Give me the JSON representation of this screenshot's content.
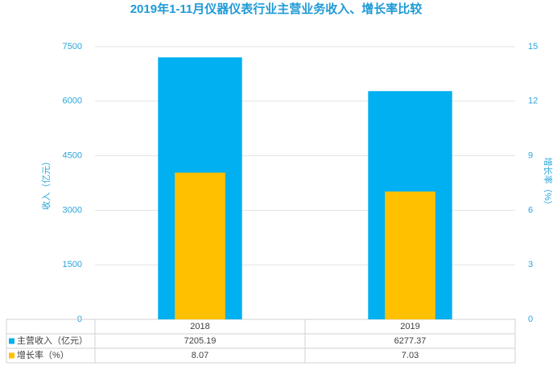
{
  "chart_data": {
    "type": "bar",
    "title": "2019年1-11月仪器仪表行业主营业务收入、增长率比较",
    "y_label": "收入（亿元）",
    "y2_label": "增长率（%）",
    "categories": [
      "2018",
      "2019"
    ],
    "series": [
      {
        "name": "主营收入（亿元）",
        "color": "#00b0f0",
        "values": [
          7205.19,
          6277.37
        ]
      },
      {
        "name": "增长率（%）",
        "color": "#ffc000",
        "values": [
          8.07,
          7.03
        ],
        "axis": "y2"
      }
    ],
    "ylim": [
      0,
      7500
    ],
    "yticks": [
      0,
      1500,
      3000,
      4500,
      6000,
      7500
    ],
    "y2lim": [
      0,
      15
    ],
    "y2ticks": [
      0,
      3,
      6,
      9,
      12,
      15
    ],
    "grid": true
  }
}
